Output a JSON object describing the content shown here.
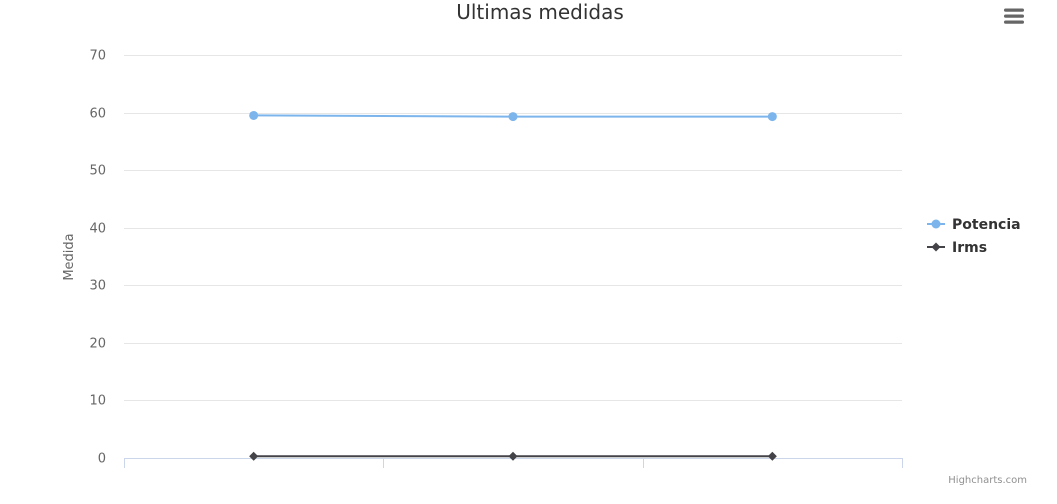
{
  "colors": {
    "potencia": "#7cb5ec",
    "irms": "#434348",
    "grid": "#e6e6e6",
    "axis": "#ccd6eb",
    "menu": "#666666"
  },
  "credits": "Highcharts.com",
  "menu_icon": "hamburger-menu-icon",
  "chart_data": {
    "type": "line",
    "title": "Ultimas medidas",
    "xlabel": "",
    "ylabel": "Medida",
    "ylim": [
      0,
      70
    ],
    "yticks": [
      0,
      10,
      20,
      30,
      40,
      50,
      60,
      70
    ],
    "x": [
      1,
      2,
      3
    ],
    "grid": true,
    "legend": "right",
    "series": [
      {
        "name": "Potencia",
        "marker": "circle",
        "values": [
          59.5,
          59.3,
          59.3
        ]
      },
      {
        "name": "Irms",
        "marker": "diamond",
        "values": [
          0.3,
          0.3,
          0.3
        ]
      }
    ]
  }
}
